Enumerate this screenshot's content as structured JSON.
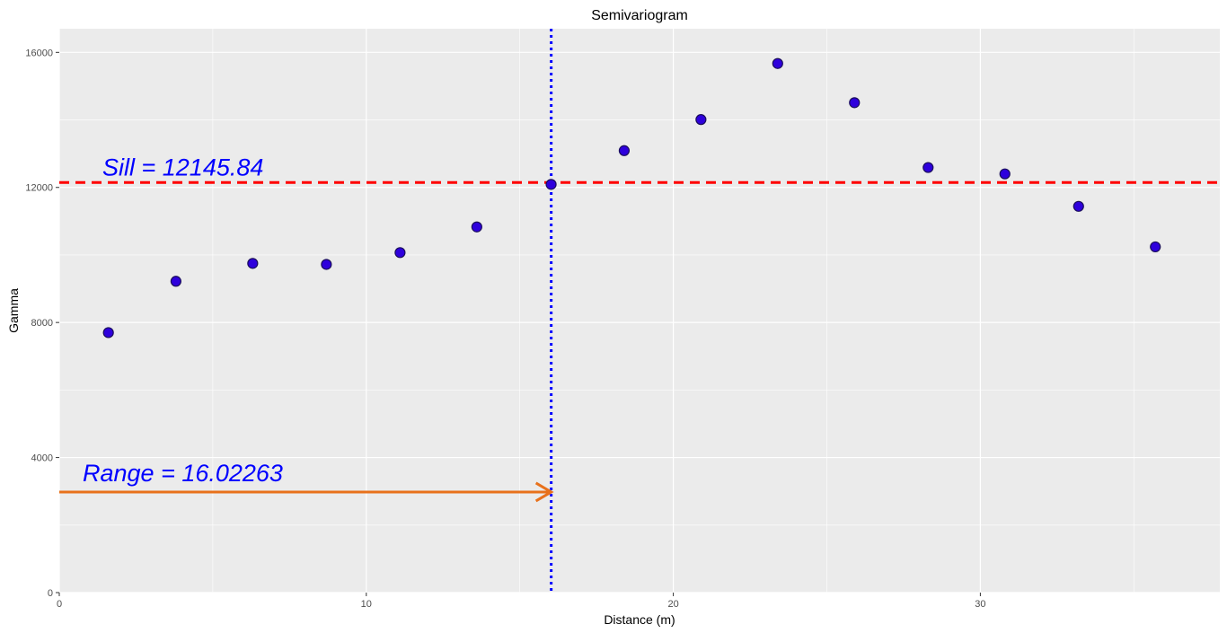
{
  "chart_data": {
    "type": "scatter",
    "title": "Semivariogram",
    "xlabel": "Distance (m)",
    "ylabel": "Gamma",
    "xlim": [
      0,
      37.8
    ],
    "ylim": [
      0,
      16700
    ],
    "x_ticks": [
      0,
      10,
      20,
      30
    ],
    "x_tick_labels": [
      "0",
      "10",
      "20",
      "30"
    ],
    "y_ticks": [
      0,
      4000,
      8000,
      12000,
      16000
    ],
    "y_tick_labels": [
      "0",
      "4000",
      "8000",
      "12000",
      "16000"
    ],
    "grid": true,
    "points": [
      {
        "x": 1.6,
        "y": 7700
      },
      {
        "x": 3.8,
        "y": 9220
      },
      {
        "x": 6.3,
        "y": 9750
      },
      {
        "x": 8.7,
        "y": 9720
      },
      {
        "x": 11.1,
        "y": 10070
      },
      {
        "x": 13.6,
        "y": 10830
      },
      {
        "x": 16.02,
        "y": 12090
      },
      {
        "x": 18.4,
        "y": 13090
      },
      {
        "x": 20.9,
        "y": 14010
      },
      {
        "x": 23.4,
        "y": 15670
      },
      {
        "x": 25.9,
        "y": 14510
      },
      {
        "x": 28.3,
        "y": 12590
      },
      {
        "x": 30.8,
        "y": 12400
      },
      {
        "x": 33.2,
        "y": 11440
      },
      {
        "x": 35.7,
        "y": 10240
      }
    ],
    "sill": 12145.84,
    "range": 16.02263,
    "range_arrow_y": 2980,
    "annotations": {
      "sill_text": "Sill = 12145.84",
      "range_text": "Range = 16.02263"
    },
    "colors": {
      "panel": "#ebebeb",
      "grid": "#ffffff",
      "point_fill": "#2e00dc",
      "point_stroke": "#1a0d5c",
      "sill_line": "#ff0000",
      "range_line": "#0000ff",
      "arrow": "#e8711b",
      "annotation_text": "#0000ff"
    }
  }
}
